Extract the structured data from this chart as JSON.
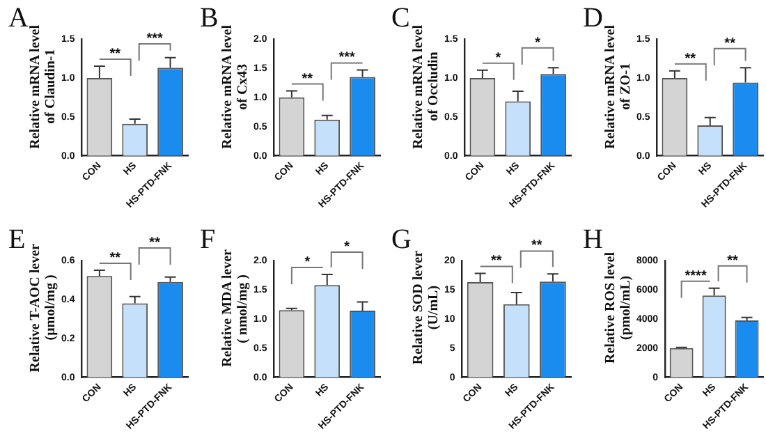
{
  "chart_data": [
    {
      "type": "bar",
      "title": "A",
      "ylabel": "Relative mRNA level\nof Claudin-1",
      "categories": [
        "CON",
        "HS",
        "HS-PTD-FNK"
      ],
      "values": [
        1.0,
        0.41,
        1.13
      ],
      "errors": [
        0.15,
        0.06,
        0.13
      ],
      "colors": [
        "#d4d4d4",
        "#c4e0fa",
        "#1a8cf0"
      ],
      "ylim": [
        0,
        1.5
      ],
      "yticks": [
        {
          "value": 0,
          "label": "0.0"
        },
        0.5,
        {
          "value": 1,
          "label": "1.0"
        },
        1.5
      ],
      "annotations": [
        "**",
        "***"
      ]
    },
    {
      "type": "bar",
      "title": "B",
      "ylabel": "Relative mRNA level\nof Cx43",
      "categories": [
        "CON",
        "HS",
        "HS-PTD-FNK"
      ],
      "values": [
        1.0,
        0.62,
        1.35
      ],
      "errors": [
        0.11,
        0.07,
        0.12
      ],
      "colors": [
        "#d4d4d4",
        "#c4e0fa",
        "#1a8cf0"
      ],
      "ylim": [
        0,
        2
      ],
      "yticks": [
        {
          "value": 0,
          "label": "0.0"
        },
        0.5,
        {
          "value": 1,
          "label": "1.0"
        },
        1.5,
        {
          "value": 2,
          "label": "2.0"
        }
      ],
      "annotations": [
        "**",
        "***"
      ]
    },
    {
      "type": "bar",
      "title": "C",
      "ylabel": "Relative mRNA level\nof Occludin",
      "categories": [
        "CON",
        "HS",
        "HS-PTD-FNK"
      ],
      "values": [
        1.0,
        0.7,
        1.05
      ],
      "errors": [
        0.1,
        0.13,
        0.08
      ],
      "colors": [
        "#d4d4d4",
        "#c4e0fa",
        "#1a8cf0"
      ],
      "ylim": [
        0,
        1.5
      ],
      "yticks": [
        {
          "value": 0,
          "label": "0.0"
        },
        0.5,
        {
          "value": 1,
          "label": "1.0"
        },
        1.5
      ],
      "annotations": [
        "*",
        "*"
      ]
    },
    {
      "type": "bar",
      "title": "D",
      "ylabel": "Relative mRNA level\nof ZO-1",
      "categories": [
        "CON",
        "HS",
        "HS-PTD-FNK"
      ],
      "values": [
        1.0,
        0.39,
        0.94
      ],
      "errors": [
        0.09,
        0.1,
        0.19
      ],
      "colors": [
        "#d4d4d4",
        "#c4e0fa",
        "#1a8cf0"
      ],
      "ylim": [
        0,
        1.5
      ],
      "yticks": [
        {
          "value": 0,
          "label": "0.0"
        },
        0.5,
        {
          "value": 1,
          "label": "1.0"
        },
        1.5
      ],
      "annotations": [
        "**",
        "**"
      ]
    },
    {
      "type": "bar",
      "title": "E",
      "ylabel": "Relative T-AOC lever\n(μmol/mg )",
      "categories": [
        "CON",
        "HS",
        "HS-PTD-FNK"
      ],
      "values": [
        0.52,
        0.38,
        0.49
      ],
      "errors": [
        0.03,
        0.035,
        0.025
      ],
      "colors": [
        "#d4d4d4",
        "#c4e0fa",
        "#1a8cf0"
      ],
      "ylim": [
        0,
        0.6
      ],
      "yticks": [
        {
          "value": 0,
          "label": "0.0"
        },
        0.2,
        0.4,
        0.6
      ],
      "annotations": [
        "**",
        "**"
      ]
    },
    {
      "type": "bar",
      "title": "F",
      "ylabel": "Relative MDA lever\n( nmol/mg )",
      "categories": [
        "CON",
        "HS",
        "HS-PTD-FNK"
      ],
      "values": [
        1.15,
        1.58,
        1.14
      ],
      "errors": [
        0.03,
        0.18,
        0.15
      ],
      "colors": [
        "#d4d4d4",
        "#c4e0fa",
        "#1a8cf0"
      ],
      "ylim": [
        0,
        2
      ],
      "yticks": [
        {
          "value": 0,
          "label": "0.0"
        },
        0.5,
        {
          "value": 1,
          "label": "1.0"
        },
        1.5,
        {
          "value": 2,
          "label": "2.0"
        }
      ],
      "annotations": [
        "*",
        "*"
      ]
    },
    {
      "type": "bar",
      "title": "G",
      "ylabel": "Relative SOD lever\n(U/mL)",
      "categories": [
        "CON",
        "HS",
        "HS-PTD-FNK"
      ],
      "values": [
        16.3,
        12.5,
        16.4
      ],
      "errors": [
        1.5,
        2.0,
        1.3
      ],
      "colors": [
        "#d4d4d4",
        "#c4e0fa",
        "#1a8cf0"
      ],
      "ylim": [
        0,
        20
      ],
      "yticks": [
        0,
        5,
        10,
        15,
        20
      ],
      "annotations": [
        "**",
        "**"
      ]
    },
    {
      "type": "bar",
      "title": "H",
      "ylabel": "Relative ROS level\n(pmol/mL)",
      "categories": [
        "CON",
        "HS",
        "HS-PTD-FNK"
      ],
      "values": [
        2000,
        5600,
        3900
      ],
      "errors": [
        50,
        500,
        200
      ],
      "colors": [
        "#d4d4d4",
        "#c4e0fa",
        "#1a8cf0"
      ],
      "ylim": [
        0,
        8000
      ],
      "yticks": [
        0,
        2000,
        4000,
        6000,
        8000
      ],
      "annotations": [
        "****",
        "**"
      ]
    }
  ]
}
